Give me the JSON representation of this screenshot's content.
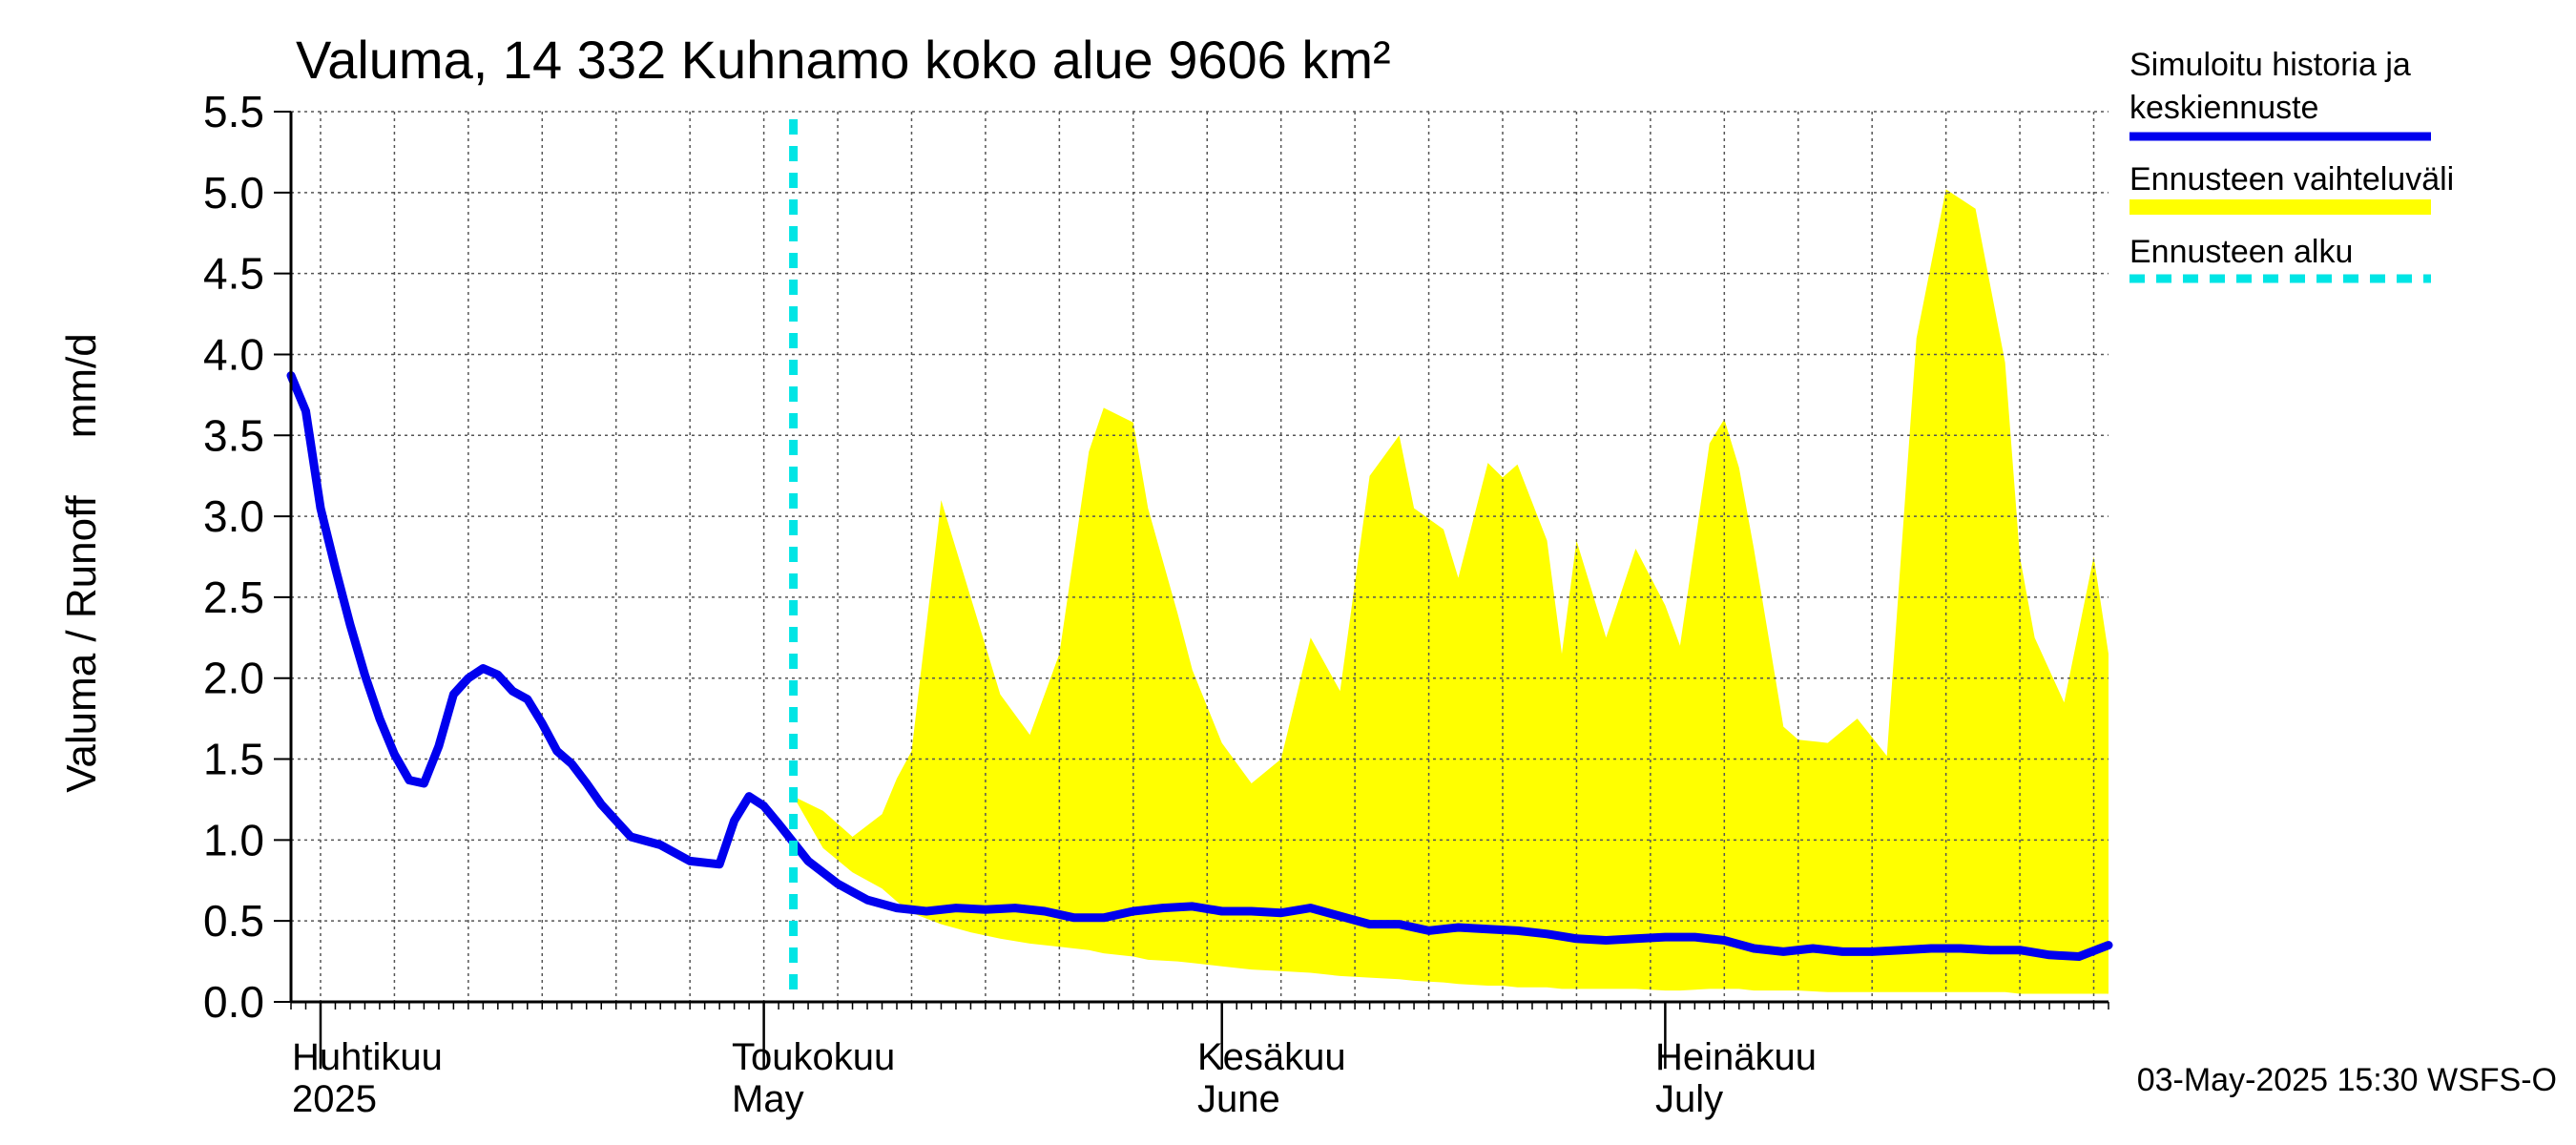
{
  "title": "Valuma, 14 332 Kuhnamo koko alue 9606 km²",
  "ylabel_left": "Valuma / Runoff",
  "ylabel_unit": "mm/d",
  "legend": {
    "simulated_line1": "Simuloitu historia ja",
    "simulated_line2": "keskiennuste",
    "range": "Ennusteen vaihteluväli",
    "start": "Ennusteen alku"
  },
  "colors": {
    "simulated": "#0000ee",
    "range": "#ffff00",
    "start": "#00e5e5",
    "grid": "#555555"
  },
  "footer": "03-May-2025 15:30 WSFS-O",
  "months": [
    {
      "fi": "Huhtikuu",
      "en": "2025"
    },
    {
      "fi": "Toukokuu",
      "en": "May"
    },
    {
      "fi": "Kesäkuu",
      "en": "June"
    },
    {
      "fi": "Heinäkuu",
      "en": "July"
    }
  ],
  "chart_data": {
    "type": "area",
    "x_range": [
      "2025-03-30",
      "2025-07-31"
    ],
    "ylim": [
      0.0,
      5.5
    ],
    "yticks": [
      "0.0",
      "0.5",
      "1.0",
      "1.5",
      "2.0",
      "2.5",
      "3.0",
      "3.5",
      "4.0",
      "4.5",
      "5.0",
      "5.5"
    ],
    "grid": true,
    "legend_position": "right",
    "forecast_start": "2025-05-03",
    "series": [
      {
        "name": "Simuloitu historia ja keskiennuste",
        "type": "line",
        "dates": [
          "2025-03-30",
          "2025-03-31",
          "2025-04-01",
          "2025-04-02",
          "2025-04-03",
          "2025-04-04",
          "2025-04-05",
          "2025-04-06",
          "2025-04-07",
          "2025-04-08",
          "2025-04-09",
          "2025-04-10",
          "2025-04-11",
          "2025-04-12",
          "2025-04-13",
          "2025-04-14",
          "2025-04-15",
          "2025-04-16",
          "2025-04-17",
          "2025-04-18",
          "2025-04-19",
          "2025-04-20",
          "2025-04-22",
          "2025-04-24",
          "2025-04-26",
          "2025-04-28",
          "2025-04-29",
          "2025-04-30",
          "2025-05-01",
          "2025-05-02",
          "2025-05-04",
          "2025-05-06",
          "2025-05-08",
          "2025-05-10",
          "2025-05-12",
          "2025-05-14",
          "2025-05-16",
          "2025-05-18",
          "2025-05-20",
          "2025-05-22",
          "2025-05-24",
          "2025-05-26",
          "2025-05-28",
          "2025-05-30",
          "2025-06-01",
          "2025-06-03",
          "2025-06-05",
          "2025-06-07",
          "2025-06-09",
          "2025-06-11",
          "2025-06-13",
          "2025-06-15",
          "2025-06-17",
          "2025-06-19",
          "2025-06-21",
          "2025-06-23",
          "2025-06-25",
          "2025-06-27",
          "2025-06-29",
          "2025-07-01",
          "2025-07-03",
          "2025-07-05",
          "2025-07-07",
          "2025-07-09",
          "2025-07-11",
          "2025-07-13",
          "2025-07-15",
          "2025-07-17",
          "2025-07-19",
          "2025-07-21",
          "2025-07-23",
          "2025-07-25",
          "2025-07-27",
          "2025-07-29",
          "2025-07-31"
        ],
        "values": [
          3.87,
          3.65,
          3.05,
          2.68,
          2.33,
          2.02,
          1.75,
          1.53,
          1.37,
          1.35,
          1.58,
          1.9,
          2.0,
          2.06,
          2.02,
          1.92,
          1.87,
          1.72,
          1.55,
          1.47,
          1.35,
          1.22,
          1.02,
          0.97,
          0.87,
          0.85,
          1.12,
          1.27,
          1.21,
          1.1,
          0.87,
          0.73,
          0.63,
          0.58,
          0.56,
          0.58,
          0.57,
          0.58,
          0.56,
          0.52,
          0.52,
          0.56,
          0.58,
          0.59,
          0.56,
          0.56,
          0.55,
          0.58,
          0.53,
          0.48,
          0.48,
          0.44,
          0.46,
          0.45,
          0.44,
          0.42,
          0.39,
          0.38,
          0.39,
          0.4,
          0.4,
          0.38,
          0.33,
          0.31,
          0.33,
          0.31,
          0.31,
          0.32,
          0.33,
          0.33,
          0.32,
          0.32,
          0.29,
          0.28,
          0.35
        ]
      },
      {
        "name": "Ennusteen vaihteluväli",
        "type": "band",
        "dates": [
          "2025-05-03",
          "2025-05-05",
          "2025-05-07",
          "2025-05-09",
          "2025-05-10",
          "2025-05-11",
          "2025-05-13",
          "2025-05-15",
          "2025-05-17",
          "2025-05-19",
          "2025-05-21",
          "2025-05-23",
          "2025-05-24",
          "2025-05-26",
          "2025-05-27",
          "2025-05-29",
          "2025-05-30",
          "2025-06-01",
          "2025-06-03",
          "2025-06-05",
          "2025-06-07",
          "2025-06-09",
          "2025-06-11",
          "2025-06-13",
          "2025-06-14",
          "2025-06-16",
          "2025-06-17",
          "2025-06-19",
          "2025-06-20",
          "2025-06-21",
          "2025-06-23",
          "2025-06-24",
          "2025-06-25",
          "2025-06-27",
          "2025-06-29",
          "2025-07-01",
          "2025-07-02",
          "2025-07-04",
          "2025-07-05",
          "2025-07-06",
          "2025-07-07",
          "2025-07-08",
          "2025-07-09",
          "2025-07-10",
          "2025-07-12",
          "2025-07-14",
          "2025-07-16",
          "2025-07-18",
          "2025-07-20",
          "2025-07-22",
          "2025-07-24",
          "2025-07-25",
          "2025-07-26",
          "2025-07-28",
          "2025-07-30",
          "2025-07-31"
        ],
        "upper": [
          1.27,
          1.18,
          1.02,
          1.16,
          1.38,
          1.55,
          3.1,
          2.5,
          1.9,
          1.65,
          2.15,
          3.4,
          3.67,
          3.58,
          3.05,
          2.4,
          2.05,
          1.6,
          1.35,
          1.5,
          2.25,
          1.92,
          3.25,
          3.5,
          3.05,
          2.92,
          2.62,
          3.33,
          3.24,
          3.32,
          2.85,
          2.15,
          2.85,
          2.25,
          2.8,
          2.45,
          2.2,
          3.45,
          3.6,
          3.3,
          2.8,
          2.25,
          1.7,
          1.62,
          1.6,
          1.75,
          1.52,
          4.1,
          5.02,
          4.9,
          3.95,
          2.75,
          2.25,
          1.85,
          2.75,
          2.15
        ],
        "lower": [
          1.27,
          0.95,
          0.8,
          0.7,
          0.62,
          0.55,
          0.48,
          0.43,
          0.39,
          0.36,
          0.34,
          0.32,
          0.3,
          0.28,
          0.26,
          0.25,
          0.24,
          0.22,
          0.2,
          0.19,
          0.18,
          0.16,
          0.15,
          0.14,
          0.13,
          0.12,
          0.11,
          0.1,
          0.1,
          0.09,
          0.09,
          0.08,
          0.08,
          0.08,
          0.08,
          0.07,
          0.07,
          0.08,
          0.08,
          0.08,
          0.07,
          0.07,
          0.07,
          0.07,
          0.06,
          0.06,
          0.06,
          0.06,
          0.06,
          0.06,
          0.06,
          0.05,
          0.05,
          0.05,
          0.05,
          0.05
        ]
      },
      {
        "name": "Ennusteen alku",
        "type": "vline",
        "date": "2025-05-03"
      }
    ]
  }
}
